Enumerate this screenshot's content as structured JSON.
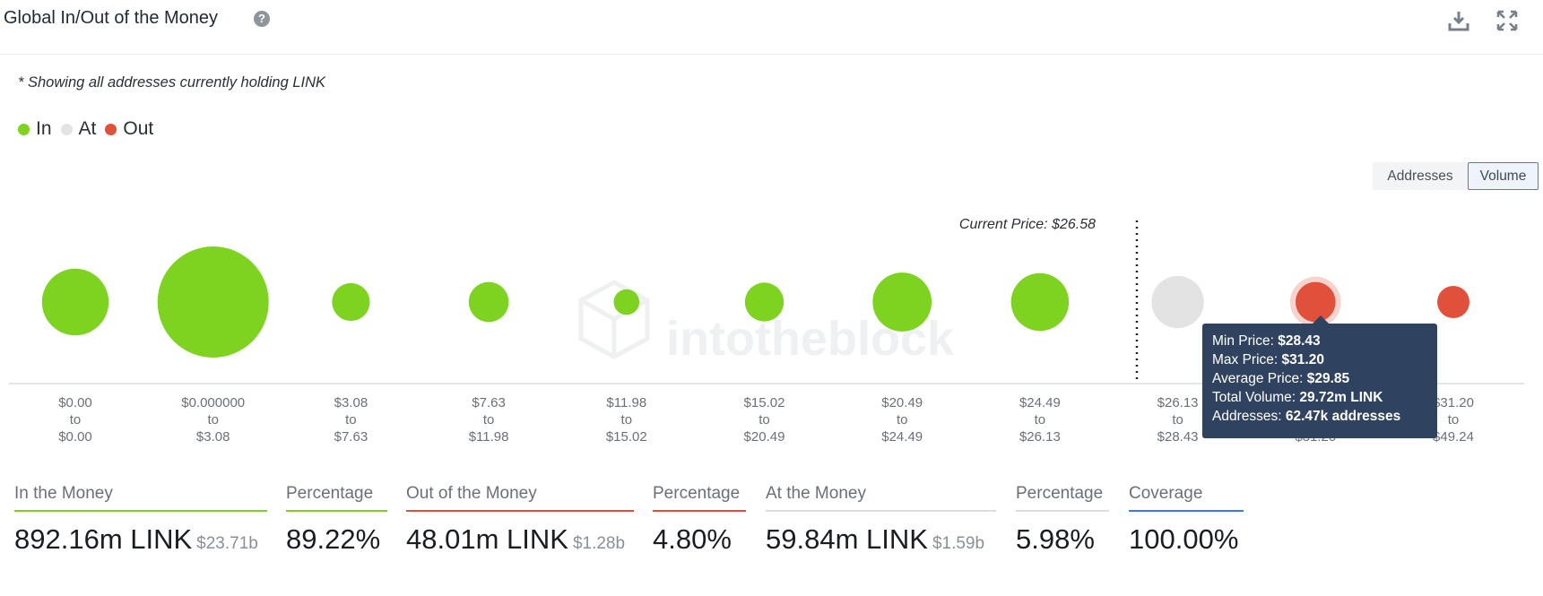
{
  "header": {
    "title": "Global In/Out of the Money",
    "help_icon": "question-circle-icon",
    "download_icon": "download-icon",
    "expand_icon": "expand-icon"
  },
  "note": "* Showing all addresses currently holding LINK",
  "legend": [
    {
      "label": "In",
      "color": "#7ed321"
    },
    {
      "label": "At",
      "color": "#e3e3e3"
    },
    {
      "label": "Out",
      "color": "#e0503a"
    }
  ],
  "toggles": {
    "addresses": "Addresses",
    "volume": "Volume",
    "active": "volume"
  },
  "current_price_label": "Current Price: $26.58",
  "watermark": "intotheblock",
  "chart_data": {
    "type": "bubble",
    "metric": "Volume",
    "current_price": 26.58,
    "categories": [
      {
        "from": "$0.00",
        "to": "$0.00",
        "status": "in",
        "relative_size": 0.6
      },
      {
        "from": "$0.000000",
        "to": "$3.08",
        "status": "in",
        "relative_size": 1.0
      },
      {
        "from": "$3.08",
        "to": "$7.63",
        "status": "in",
        "relative_size": 0.34
      },
      {
        "from": "$7.63",
        "to": "$11.98",
        "status": "in",
        "relative_size": 0.36
      },
      {
        "from": "$11.98",
        "to": "$15.02",
        "status": "in",
        "relative_size": 0.23
      },
      {
        "from": "$15.02",
        "to": "$20.49",
        "status": "in",
        "relative_size": 0.35
      },
      {
        "from": "$20.49",
        "to": "$24.49",
        "status": "in",
        "relative_size": 0.53
      },
      {
        "from": "$24.49",
        "to": "$26.13",
        "status": "in",
        "relative_size": 0.52
      },
      {
        "from": "$26.13",
        "to": "$28.43",
        "status": "at",
        "relative_size": 0.47
      },
      {
        "from": "$28.43",
        "to": "$31.20",
        "status": "out",
        "relative_size": 0.36
      },
      {
        "from": "$31.20",
        "to": "$49.24",
        "status": "out",
        "relative_size": 0.29
      }
    ],
    "colors": {
      "in": "#7ed321",
      "at": "#e3e3e3",
      "out": "#e0503a"
    },
    "highlighted_index": 9
  },
  "tooltip": [
    {
      "label": "Min Price:",
      "value": "$28.43"
    },
    {
      "label": "Max Price:",
      "value": "$31.20"
    },
    {
      "label": "Average Price:",
      "value": "$29.85"
    },
    {
      "label": "Total Volume:",
      "value": "29.72m LINK"
    },
    {
      "label": "Addresses:",
      "value": "62.47k addresses"
    }
  ],
  "stats": [
    {
      "name": "in-the-money",
      "label": "In the Money",
      "value": "892.16m LINK",
      "sub": "$23.71b",
      "color": "#7ed321"
    },
    {
      "name": "in-percentage",
      "label": "Percentage",
      "value": "89.22%",
      "sub": "",
      "color": "#7ed321"
    },
    {
      "name": "out-of-the-money",
      "label": "Out of the Money",
      "value": "48.01m LINK",
      "sub": "$1.28b",
      "color": "#e0503a"
    },
    {
      "name": "out-percentage",
      "label": "Percentage",
      "value": "4.80%",
      "sub": "",
      "color": "#e0503a"
    },
    {
      "name": "at-the-money",
      "label": "At the Money",
      "value": "59.84m LINK",
      "sub": "$1.59b",
      "color": "#e3e3e3"
    },
    {
      "name": "at-percentage",
      "label": "Percentage",
      "value": "5.98%",
      "sub": "",
      "color": "#e3e3e3"
    },
    {
      "name": "coverage",
      "label": "Coverage",
      "value": "100.00%",
      "sub": "",
      "color": "#3b7ddd"
    }
  ]
}
